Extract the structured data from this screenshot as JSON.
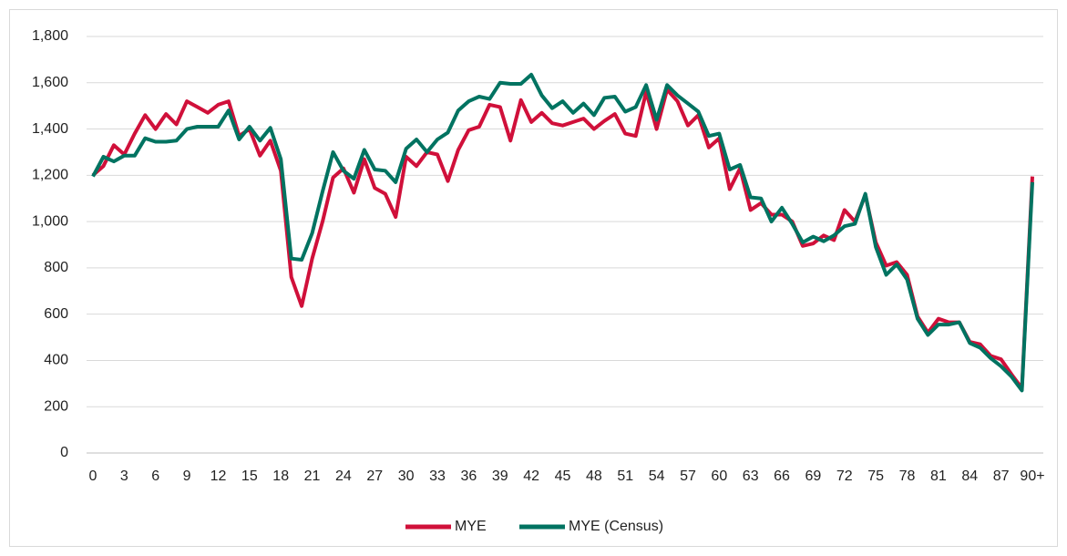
{
  "chart_data": {
    "type": "line",
    "categories": [
      "0",
      null,
      null,
      "3",
      null,
      null,
      "6",
      null,
      null,
      "9",
      null,
      null,
      "12",
      null,
      null,
      "15",
      null,
      null,
      "18",
      null,
      null,
      "21",
      null,
      null,
      "24",
      null,
      null,
      "27",
      null,
      null,
      "30",
      null,
      null,
      "33",
      null,
      null,
      "36",
      null,
      null,
      "39",
      null,
      null,
      "42",
      null,
      null,
      "45",
      null,
      null,
      "48",
      null,
      null,
      "51",
      null,
      null,
      "54",
      null,
      null,
      "57",
      null,
      null,
      "60",
      null,
      null,
      "63",
      null,
      null,
      "66",
      null,
      null,
      "69",
      null,
      null,
      "72",
      null,
      null,
      "75",
      null,
      null,
      "78",
      null,
      null,
      "81",
      null,
      null,
      "84",
      null,
      null,
      "87",
      null,
      null,
      "90+"
    ],
    "series": [
      {
        "name": "MYE",
        "color": "#d0103a",
        "values": [
          1200,
          1240,
          1330,
          1290,
          1380,
          1460,
          1400,
          1465,
          1420,
          1520,
          1495,
          1470,
          1505,
          1520,
          1370,
          1400,
          1285,
          1350,
          1220,
          760,
          635,
          840,
          1000,
          1190,
          1230,
          1125,
          1270,
          1145,
          1120,
          1020,
          1280,
          1240,
          1300,
          1290,
          1175,
          1310,
          1395,
          1410,
          1505,
          1495,
          1350,
          1525,
          1430,
          1470,
          1425,
          1415,
          1430,
          1445,
          1400,
          1435,
          1465,
          1380,
          1370,
          1560,
          1400,
          1570,
          1520,
          1415,
          1460,
          1320,
          1360,
          1140,
          1230,
          1050,
          1080,
          1030,
          1030,
          1000,
          895,
          905,
          940,
          920,
          1050,
          1000,
          1115,
          910,
          810,
          825,
          770,
          590,
          520,
          580,
          565,
          565,
          480,
          470,
          420,
          405,
          340,
          280,
          1195
        ]
      },
      {
        "name": "MYE (Census)",
        "color": "#007361",
        "values": [
          1195,
          1280,
          1260,
          1285,
          1285,
          1360,
          1345,
          1345,
          1350,
          1400,
          1410,
          1410,
          1410,
          1480,
          1355,
          1410,
          1350,
          1405,
          1270,
          840,
          835,
          950,
          1130,
          1300,
          1220,
          1185,
          1310,
          1225,
          1220,
          1170,
          1315,
          1355,
          1300,
          1355,
          1385,
          1480,
          1520,
          1540,
          1530,
          1600,
          1595,
          1595,
          1635,
          1545,
          1490,
          1520,
          1470,
          1510,
          1460,
          1535,
          1540,
          1475,
          1495,
          1590,
          1440,
          1590,
          1545,
          1510,
          1475,
          1370,
          1380,
          1225,
          1245,
          1105,
          1100,
          1000,
          1060,
          990,
          910,
          935,
          915,
          940,
          980,
          990,
          1120,
          890,
          770,
          815,
          750,
          580,
          510,
          555,
          555,
          565,
          475,
          455,
          410,
          375,
          330,
          270,
          1170
        ]
      }
    ],
    "ylim": [
      0,
      1800
    ],
    "yticks": [
      0,
      200,
      400,
      600,
      800,
      {
        "value": 1000,
        "label": "1,000"
      },
      {
        "value": 1200,
        "label": "1,200"
      },
      {
        "value": 1400,
        "label": "1,400"
      },
      {
        "value": 1600,
        "label": "1,600"
      },
      {
        "value": 1800,
        "label": "1,800"
      }
    ],
    "grid": true,
    "legend": "bottom"
  }
}
